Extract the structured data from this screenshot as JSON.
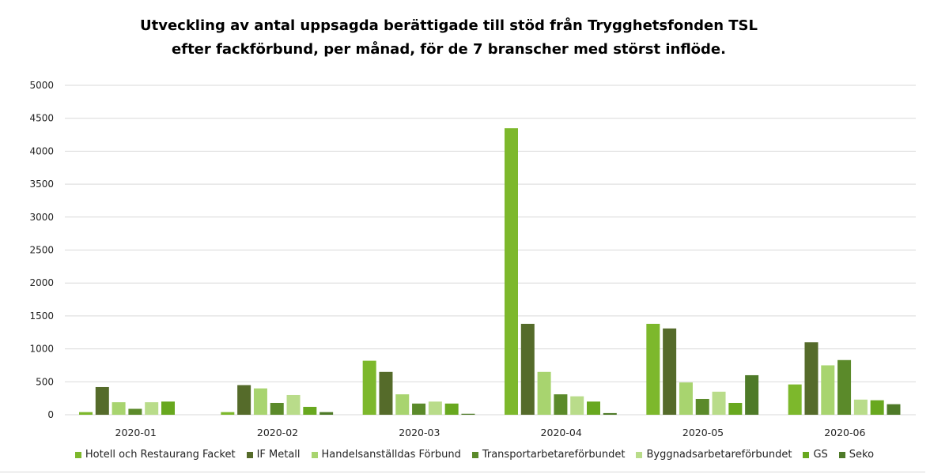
{
  "chart_data": {
    "type": "bar",
    "title": "Utveckling av antal uppsagda berättigade till stöd från Trygghetsfonden TSL efter fackförbund, per månad, för de 7 branscher med störst inflöde.",
    "title_lines": [
      "Utveckling av antal uppsagda berättigade till stöd från Trygghetsfonden TSL",
      "efter fackförbund, per månad, för de 7 branscher med störst inflöde."
    ],
    "xlabel": "",
    "ylabel": "",
    "ylim": [
      0,
      5000
    ],
    "yticks": [
      0,
      500,
      1000,
      1500,
      2000,
      2500,
      3000,
      3500,
      4000,
      4500,
      5000
    ],
    "grid": true,
    "legend_position": "bottom",
    "categories": [
      "2020-01",
      "2020-02",
      "2020-03",
      "2020-04",
      "2020-05",
      "2020-06"
    ],
    "series": [
      {
        "name": "Hotell och Restaurang Facket",
        "color": "#7db82c",
        "values": [
          40,
          40,
          820,
          4350,
          1380,
          460
        ]
      },
      {
        "name": "IF Metall",
        "color": "#556b2a",
        "values": [
          420,
          450,
          650,
          1380,
          1310,
          1100
        ]
      },
      {
        "name": "Handelsanställdas Förbund",
        "color": "#a8d46f",
        "values": [
          190,
          400,
          310,
          650,
          490,
          750
        ]
      },
      {
        "name": "Transportarbetareförbundet",
        "color": "#5b8a2a",
        "values": [
          90,
          180,
          170,
          310,
          240,
          830
        ]
      },
      {
        "name": "Byggnadsarbetareförbundet",
        "color": "#b9dc8a",
        "values": [
          190,
          300,
          200,
          280,
          350,
          230
        ]
      },
      {
        "name": "GS",
        "color": "#68a81f",
        "values": [
          200,
          120,
          170,
          200,
          180,
          220
        ]
      },
      {
        "name": "Seko",
        "color": "#4e7a28",
        "values": [
          0,
          40,
          15,
          25,
          600,
          160
        ]
      }
    ]
  }
}
